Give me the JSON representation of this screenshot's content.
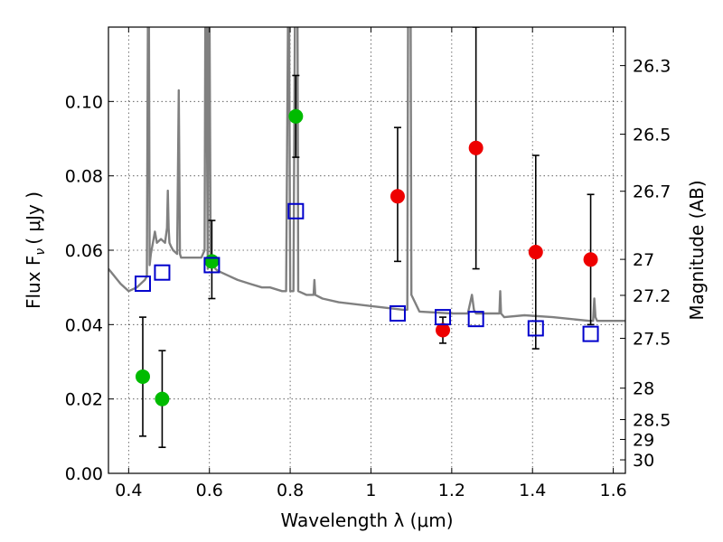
{
  "chart_data": {
    "type": "scatter",
    "xlabel": "Wavelength  λ (μm)",
    "ylabel": "Flux  F",
    "ylabel_sub": "ν",
    "ylabel_unit": "( μJy )",
    "y2label": "Magnitude (AB)",
    "xlim": [
      0.35,
      1.63
    ],
    "ylim": [
      0.0,
      0.12
    ],
    "grid": true,
    "x_ticks": [
      0.4,
      0.6,
      0.8,
      1.0,
      1.2,
      1.4,
      1.6
    ],
    "x_tick_labels": [
      "0.4",
      "0.6",
      "0.8",
      "1",
      "1.2",
      "1.4",
      "1.6"
    ],
    "y_ticks": [
      0.0,
      0.02,
      0.04,
      0.06,
      0.08,
      0.1
    ],
    "y_tick_labels": [
      "0.00",
      "0.02",
      "0.04",
      "0.06",
      "0.08",
      "0.10"
    ],
    "mag_ticks": [
      26.3,
      26.5,
      26.7,
      27,
      27.2,
      27.5,
      28,
      28.5,
      29,
      30
    ],
    "mag_tick_labels": [
      "26.3",
      "26.5",
      "26.7",
      "27",
      "27.2",
      "27.5",
      "28",
      "28.5",
      "29",
      "30"
    ],
    "colors": {
      "green": "#00bb00",
      "red": "#ee0000",
      "blue_square": "#0000cc",
      "sed": "#808080",
      "errorbar": "#000000"
    },
    "series": [
      {
        "name": "observed (green)",
        "marker": "circle",
        "points": [
          {
            "x": 0.435,
            "y": 0.026,
            "lo": 0.01,
            "hi": 0.042
          },
          {
            "x": 0.483,
            "y": 0.02,
            "lo": 0.007,
            "hi": 0.033
          },
          {
            "x": 0.606,
            "y": 0.057,
            "lo": 0.047,
            "hi": 0.068
          },
          {
            "x": 0.814,
            "y": 0.096,
            "lo": 0.085,
            "hi": 0.107
          }
        ]
      },
      {
        "name": "observed (red)",
        "marker": "circle",
        "points": [
          {
            "x": 1.066,
            "y": 0.0745,
            "lo": 0.057,
            "hi": 0.093
          },
          {
            "x": 1.178,
            "y": 0.0385,
            "lo": 0.035,
            "hi": 0.042
          },
          {
            "x": 1.26,
            "y": 0.0875,
            "lo": 0.055,
            "hi": 0.12
          },
          {
            "x": 1.408,
            "y": 0.0595,
            "lo": 0.0335,
            "hi": 0.0855
          },
          {
            "x": 1.544,
            "y": 0.0575,
            "lo": 0.04,
            "hi": 0.075
          }
        ]
      },
      {
        "name": "model (blue squares)",
        "marker": "square",
        "points": [
          {
            "x": 0.435,
            "y": 0.051
          },
          {
            "x": 0.483,
            "y": 0.054
          },
          {
            "x": 0.606,
            "y": 0.056
          },
          {
            "x": 0.814,
            "y": 0.0705
          },
          {
            "x": 1.066,
            "y": 0.043
          },
          {
            "x": 1.178,
            "y": 0.042
          },
          {
            "x": 1.26,
            "y": 0.0415
          },
          {
            "x": 1.408,
            "y": 0.039
          },
          {
            "x": 1.544,
            "y": 0.0375
          }
        ]
      }
    ],
    "sed_line": {
      "name": "model SED",
      "x": [
        0.35,
        0.38,
        0.4,
        0.42,
        0.44,
        0.445,
        0.448,
        0.45,
        0.452,
        0.455,
        0.46,
        0.465,
        0.47,
        0.48,
        0.49,
        0.495,
        0.497,
        0.499,
        0.501,
        0.505,
        0.51,
        0.52,
        0.524,
        0.527,
        0.53,
        0.55,
        0.58,
        0.588,
        0.59,
        0.592,
        0.596,
        0.598,
        0.6,
        0.603,
        0.606,
        0.61,
        0.615,
        0.62,
        0.63,
        0.65,
        0.67,
        0.7,
        0.73,
        0.75,
        0.78,
        0.79,
        0.795,
        0.797,
        0.8,
        0.808,
        0.81,
        0.812,
        0.815,
        0.818,
        0.82,
        0.84,
        0.858,
        0.86,
        0.862,
        0.88,
        0.92,
        1.0,
        1.08,
        1.09,
        1.092,
        1.095,
        1.098,
        1.1,
        1.12,
        1.2,
        1.24,
        1.25,
        1.255,
        1.26,
        1.3,
        1.318,
        1.32,
        1.322,
        1.33,
        1.38,
        1.45,
        1.54,
        1.55,
        1.553,
        1.556,
        1.56,
        1.6,
        1.63
      ],
      "y": [
        0.055,
        0.051,
        0.049,
        0.05,
        0.052,
        0.053,
        0.13,
        0.13,
        0.056,
        0.059,
        0.062,
        0.065,
        0.062,
        0.063,
        0.062,
        0.066,
        0.076,
        0.066,
        0.062,
        0.061,
        0.06,
        0.059,
        0.103,
        0.059,
        0.058,
        0.058,
        0.058,
        0.06,
        0.13,
        0.13,
        0.055,
        0.13,
        0.13,
        0.058,
        0.057,
        0.056,
        0.055,
        0.0545,
        0.054,
        0.053,
        0.052,
        0.051,
        0.05,
        0.05,
        0.049,
        0.049,
        0.13,
        0.13,
        0.049,
        0.049,
        0.09,
        0.13,
        0.13,
        0.13,
        0.049,
        0.048,
        0.048,
        0.052,
        0.048,
        0.047,
        0.046,
        0.045,
        0.044,
        0.044,
        0.13,
        0.13,
        0.13,
        0.048,
        0.0435,
        0.043,
        0.043,
        0.048,
        0.044,
        0.043,
        0.043,
        0.043,
        0.049,
        0.043,
        0.042,
        0.0425,
        0.042,
        0.041,
        0.041,
        0.047,
        0.042,
        0.041,
        0.041,
        0.041
      ]
    }
  }
}
